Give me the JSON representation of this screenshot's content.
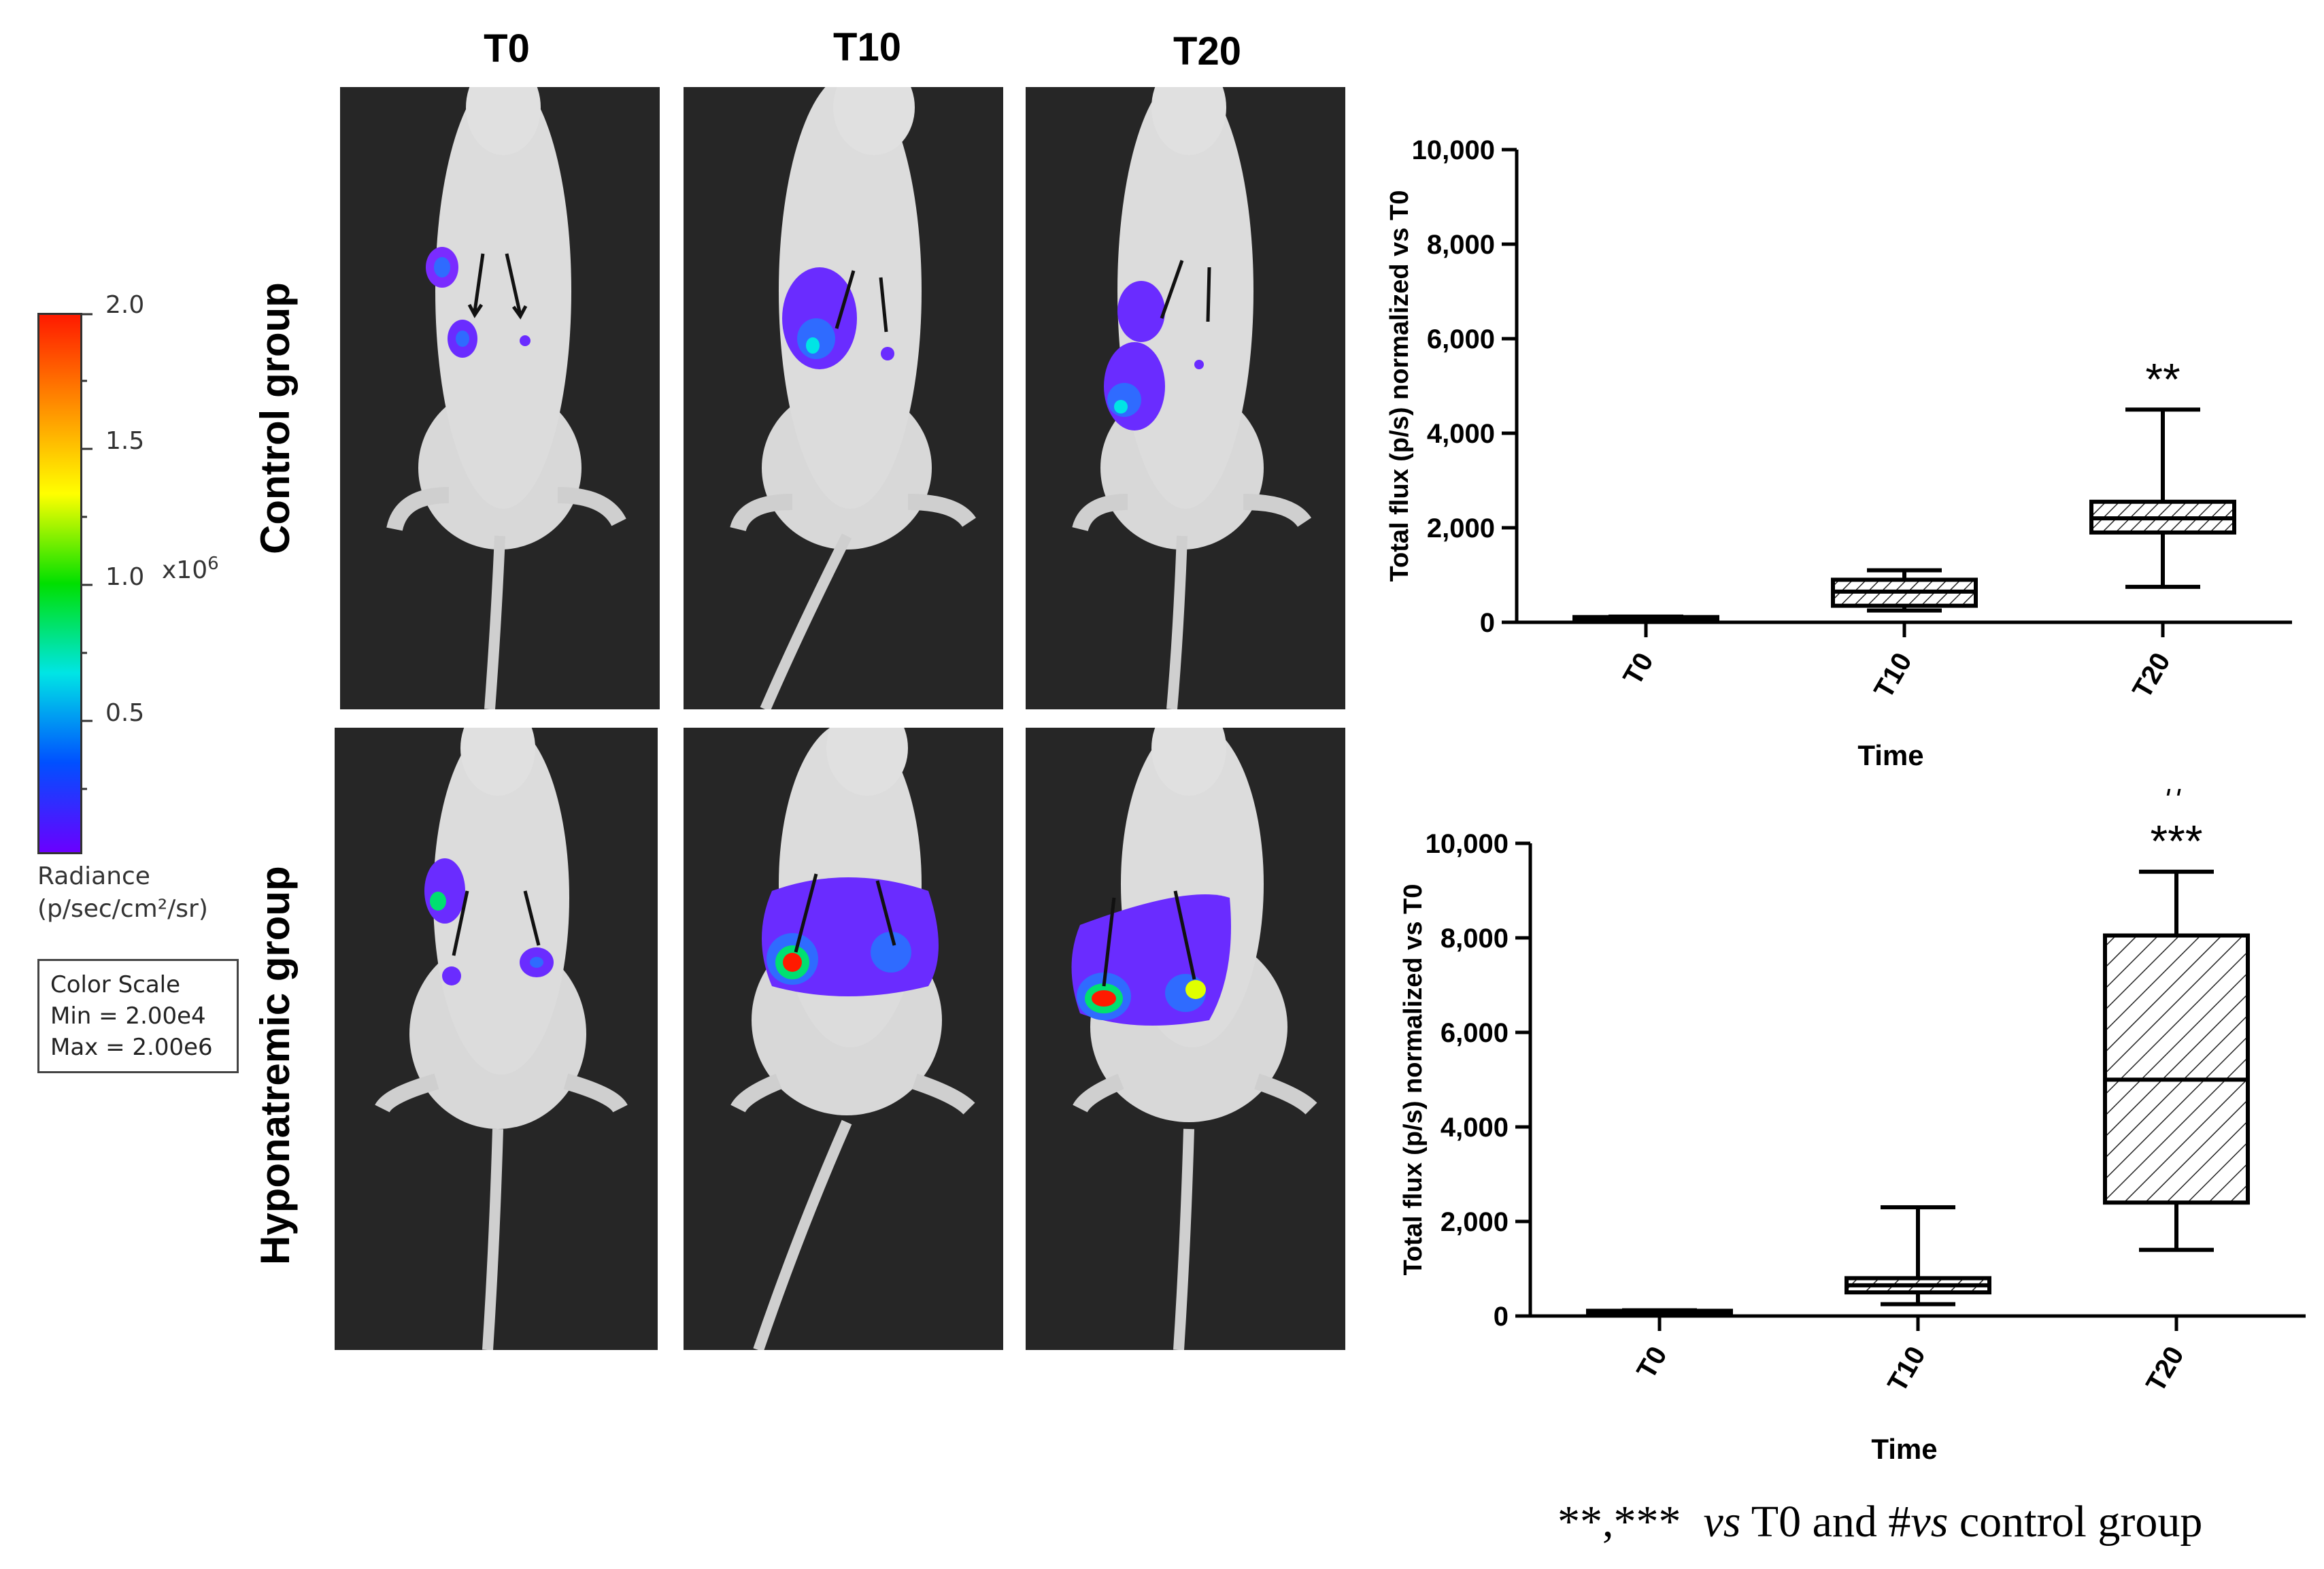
{
  "columns": [
    "T0",
    "T10",
    "T20"
  ],
  "rows": [
    "Control group",
    "Hyponatremic group"
  ],
  "color_scale": {
    "ticks": [
      "2.0",
      "1.5",
      "1.0",
      "0.5"
    ],
    "multiplier": "x10",
    "exponent": "6",
    "radiance_label": "Radiance",
    "radiance_unit": "(p/sec/cm²/sr)",
    "box_title": "Color Scale",
    "box_min": "Min = 2.00e4",
    "box_max": "Max = 2.00e6",
    "gradient_colors": [
      "#ff1a00",
      "#ff8c00",
      "#ffff00",
      "#00e000",
      "#00e5e5",
      "#0050ff",
      "#6a00ff"
    ]
  },
  "footnote": {
    "stars": "**,***",
    "vs1": "vs",
    "mid": "T0 and #",
    "vs2": "vs",
    "end": "control group"
  },
  "chart_data": [
    {
      "type": "box",
      "group": "Control group",
      "categories": [
        "T0",
        "T10",
        "T20"
      ],
      "boxes": [
        {
          "whisker_low": 80,
          "q1": 90,
          "median": 100,
          "q3": 110,
          "whisker_high": 120
        },
        {
          "whisker_low": 250,
          "q1": 350,
          "median": 650,
          "q3": 900,
          "whisker_high": 1100
        },
        {
          "whisker_low": 750,
          "q1": 1900,
          "median": 2200,
          "q3": 2550,
          "whisker_high": 4500
        }
      ],
      "annotations": [
        {
          "category": "T20",
          "text": "**"
        }
      ],
      "xlabel": "Time",
      "ylabel": "Total flux (p/s) normalized vs T0",
      "ylim": [
        0,
        10000
      ],
      "yticks": [
        "0",
        "2,000",
        "4,000",
        "6,000",
        "8,000",
        "10,000"
      ],
      "ytick_values": [
        0,
        2000,
        4000,
        6000,
        8000,
        10000
      ]
    },
    {
      "type": "box",
      "group": "Hyponatremic group",
      "categories": [
        "T0",
        "T10",
        "T20"
      ],
      "boxes": [
        {
          "whisker_low": 80,
          "q1": 90,
          "median": 100,
          "q3": 110,
          "whisker_high": 120
        },
        {
          "whisker_low": 250,
          "q1": 500,
          "median": 650,
          "q3": 800,
          "whisker_high": 2300
        },
        {
          "whisker_low": 1400,
          "q1": 2400,
          "median": 5000,
          "q3": 8050,
          "whisker_high": 9400
        }
      ],
      "annotations": [
        {
          "category": "T20",
          "text": "***"
        },
        {
          "category": "T20",
          "text": "#"
        }
      ],
      "xlabel": "Time",
      "ylabel": "Total flux (p/s) normalized vs T0",
      "ylim": [
        0,
        10000
      ],
      "yticks": [
        "0",
        "2,000",
        "4,000",
        "6,000",
        "8,000",
        "10,000"
      ],
      "ytick_values": [
        0,
        2000,
        4000,
        6000,
        8000,
        10000
      ]
    }
  ]
}
